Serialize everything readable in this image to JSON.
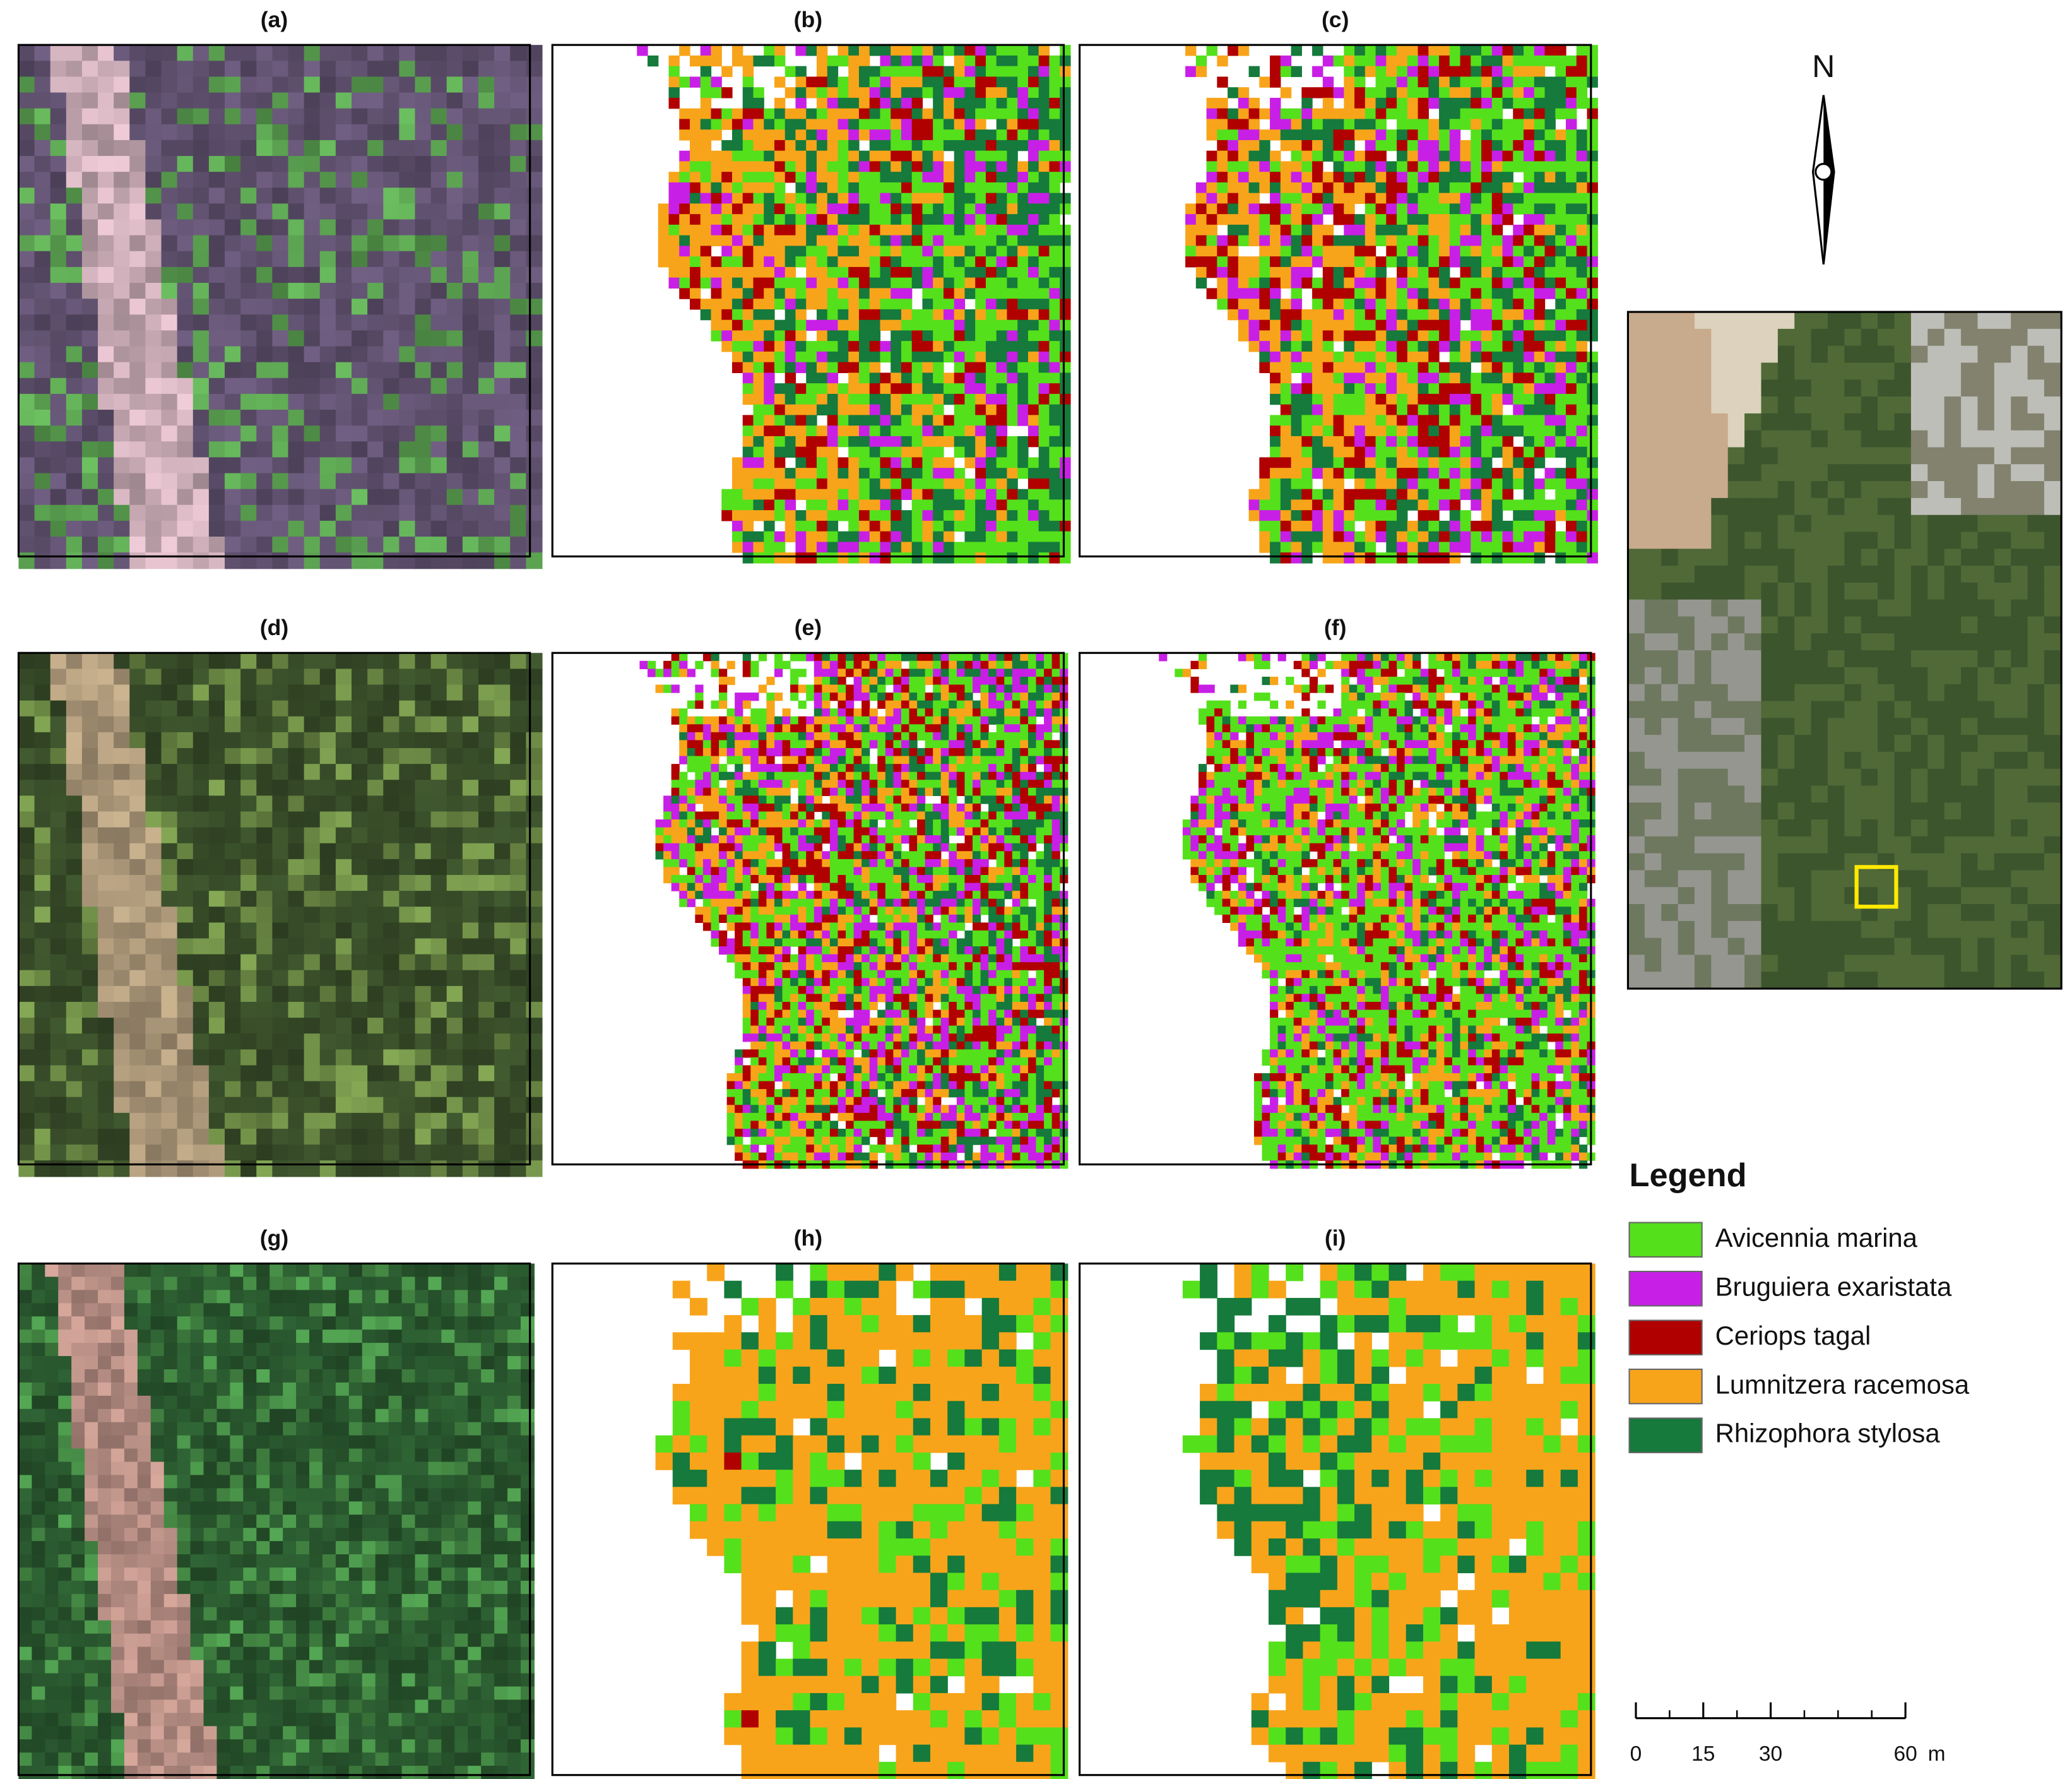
{
  "panels": {
    "labels": [
      "(a)",
      "(b)",
      "(c)",
      "(d)",
      "(e)",
      "(f)",
      "(g)",
      "(h)",
      "(i)"
    ]
  },
  "north": "N",
  "legend": {
    "title": "Legend",
    "entries": [
      {
        "name": "Avicennia marina",
        "color": "#55e01c"
      },
      {
        "name": "Bruguiera exaristata",
        "color": "#c81fe6"
      },
      {
        "name": "Ceriops tagal",
        "color": "#b00000"
      },
      {
        "name": "Lumnitzera racemosa",
        "color": "#f8a41a"
      },
      {
        "name": "Rhizophora stylosa",
        "color": "#157a3c"
      }
    ]
  },
  "scale_bar": {
    "ticks": [
      0,
      15,
      30,
      60
    ],
    "unit": "m"
  }
}
